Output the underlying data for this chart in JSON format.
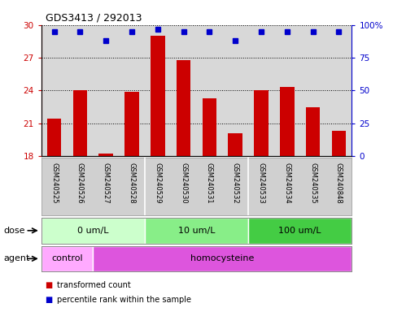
{
  "title": "GDS3413 / 292013",
  "samples": [
    "GSM240525",
    "GSM240526",
    "GSM240527",
    "GSM240528",
    "GSM240529",
    "GSM240530",
    "GSM240531",
    "GSM240532",
    "GSM240533",
    "GSM240534",
    "GSM240535",
    "GSM240848"
  ],
  "bar_values": [
    21.4,
    24.0,
    18.2,
    23.85,
    29.0,
    26.8,
    23.3,
    20.1,
    24.05,
    24.3,
    22.5,
    20.3
  ],
  "percentile_values": [
    95,
    95,
    88,
    95,
    97,
    95,
    95,
    88,
    95,
    95,
    95,
    95
  ],
  "bar_color": "#cc0000",
  "percentile_color": "#0000cc",
  "ylim_left": [
    18,
    30
  ],
  "ylim_right": [
    0,
    100
  ],
  "yticks_left": [
    18,
    21,
    24,
    27,
    30
  ],
  "yticks_right": [
    0,
    25,
    50,
    75,
    100
  ],
  "yticklabels_right": [
    "0",
    "25",
    "50",
    "75",
    "100%"
  ],
  "dose_groups": [
    {
      "label": "0 um/L",
      "start": 0,
      "end": 4
    },
    {
      "label": "10 um/L",
      "start": 4,
      "end": 8
    },
    {
      "label": "100 um/L",
      "start": 8,
      "end": 12
    }
  ],
  "dose_colors": [
    "#ccffcc",
    "#88ee88",
    "#44cc44"
  ],
  "agent_groups": [
    {
      "label": "control",
      "start": 0,
      "end": 2
    },
    {
      "label": "homocysteine",
      "start": 2,
      "end": 12
    }
  ],
  "agent_colors": [
    "#ffaaff",
    "#dd55dd"
  ],
  "dose_label": "dose",
  "agent_label": "agent",
  "legend_bar_label": "transformed count",
  "legend_percentile_label": "percentile rank within the sample",
  "background_color": "#ffffff",
  "plot_bg_color": "#d8d8d8",
  "label_bg_color": "#d0d0d0"
}
